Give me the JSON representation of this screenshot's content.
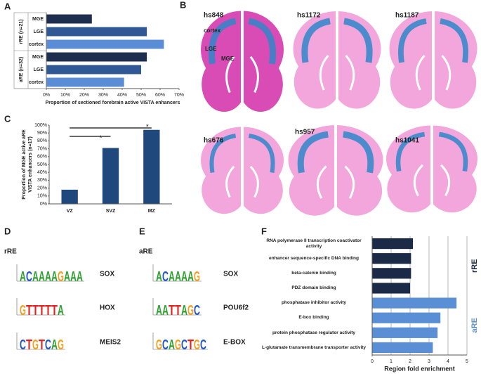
{
  "panel_labels": [
    "A",
    "B",
    "C",
    "D",
    "E",
    "F"
  ],
  "chart_data": [
    {
      "type": "hbar",
      "groups": [
        {
          "name": "rRE (n=21)",
          "categories": [
            "MGE",
            "LGE",
            "cortex"
          ],
          "values": [
            24,
            53,
            62
          ]
        },
        {
          "name": "aRE (n=32)",
          "categories": [
            "MGE",
            "LGE",
            "cortex"
          ],
          "values": [
            53,
            50,
            41
          ]
        }
      ],
      "colors": [
        "#1d2e4e",
        "#2f5894",
        "#5b8dd6"
      ],
      "xlim": [
        0,
        70
      ],
      "xticks": [
        {
          "value": 0,
          "label": "0%"
        },
        {
          "value": 10,
          "label": "10%"
        },
        {
          "value": 20,
          "label": "20%"
        },
        {
          "value": 30,
          "label": "30%"
        },
        {
          "value": 40,
          "label": "40%"
        },
        {
          "value": 50,
          "label": "50%"
        },
        {
          "value": 60,
          "label": "60%"
        },
        {
          "value": 70,
          "label": "70%"
        }
      ],
      "xlabel": "Proportion of sectioned forebrain active VISTA enhancers"
    },
    {
      "type": "bar",
      "categories": [
        "VZ",
        "SVZ",
        "MZ"
      ],
      "values": [
        18,
        71,
        94
      ],
      "color": "#1f497d",
      "ylim": [
        0,
        100
      ],
      "yticks": [
        {
          "value": 0,
          "label": "0%"
        },
        {
          "value": 10,
          "label": "10%"
        },
        {
          "value": 20,
          "label": "20%"
        },
        {
          "value": 30,
          "label": "30%"
        },
        {
          "value": 40,
          "label": "40%"
        },
        {
          "value": 50,
          "label": "50%"
        },
        {
          "value": 60,
          "label": "60%"
        },
        {
          "value": 70,
          "label": "70%"
        },
        {
          "value": 80,
          "label": "80%"
        },
        {
          "value": 90,
          "label": "90%"
        },
        {
          "value": 100,
          "label": "100%"
        }
      ],
      "ylabel": [
        "Proportion of MGE active aRE",
        "VISTA enhancers (n=17)"
      ],
      "annotations": [
        "*",
        "*"
      ]
    },
    {
      "type": "hbar",
      "groups": [
        {
          "name": "rRE",
          "color": "#1b2a47",
          "categories": [
            "RNA polymerase II transcription coactivator activity",
            "enhancer sequence-specific DNA binding",
            "beta-catenin binding",
            "PDZ domain binding"
          ],
          "values": [
            2.15,
            2.05,
            2.05,
            2.0
          ]
        },
        {
          "name": "aRE",
          "color": "#5a8fd6",
          "categories": [
            "phosphatase inhibitor activity",
            "E-box binding",
            "protein phosphatase regulator activity",
            "L-glutamate transmembrane transporter activity"
          ],
          "values": [
            4.45,
            3.6,
            3.45,
            3.2
          ]
        }
      ],
      "xlim": [
        0,
        5
      ],
      "xticks": [
        0,
        1,
        2,
        3,
        4,
        5
      ],
      "grid": true,
      "xlabel": "Region fold enrichment"
    }
  ],
  "sections": {
    "images": [
      "hs848",
      "hs1172",
      "hs1187",
      "hs676",
      "hs957",
      "hs1041"
    ],
    "regions": [
      "cortex",
      "LGE",
      "MGE"
    ]
  },
  "motifs": [
    {
      "label": "rRE",
      "items": [
        {
          "name": "SOX",
          "logo": [
            "A",
            "C",
            "A",
            "A",
            "A",
            "A",
            "G",
            "A",
            "A",
            "A"
          ]
        },
        {
          "name": "HOX",
          "logo": [
            "G",
            "T",
            "T",
            "T",
            "T",
            "T",
            "A"
          ]
        },
        {
          "name": "MEIS2",
          "logo": [
            "C",
            "T",
            "G",
            "T",
            "C",
            "A",
            "G"
          ]
        }
      ]
    },
    {
      "label": "aRE",
      "items": [
        {
          "name": "SOX",
          "logo": [
            "A",
            "C",
            "A",
            "A",
            "A",
            "A",
            "G"
          ]
        },
        {
          "name": "POU6f2",
          "logo": [
            "A",
            "A",
            "T",
            "T",
            "A",
            "G",
            "C"
          ]
        },
        {
          "name": "E-BOX",
          "logo": [
            "G",
            "C",
            "A",
            "G",
            "C",
            "T",
            "G",
            "C"
          ]
        }
      ]
    }
  ]
}
